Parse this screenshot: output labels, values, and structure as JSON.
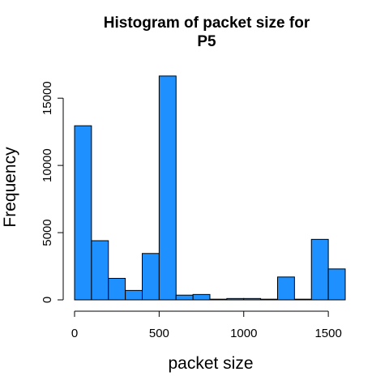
{
  "chart_data": {
    "type": "bar",
    "title_lines": [
      "Histogram of packet size for",
      "P5"
    ],
    "xlabel": "packet size",
    "ylabel": "Frequency",
    "bin_edges": [
      0,
      100,
      200,
      300,
      400,
      500,
      600,
      700,
      800,
      900,
      1000,
      1100,
      1200,
      1300,
      1400,
      1500,
      1600
    ],
    "values": [
      12950,
      4400,
      1600,
      700,
      3450,
      16650,
      350,
      400,
      50,
      100,
      100,
      50,
      1700,
      50,
      4500,
      2300
    ],
    "xlim": [
      0,
      1600
    ],
    "ylim": [
      0,
      17000
    ],
    "x_ticks": [
      0,
      500,
      1000,
      1500
    ],
    "x_tick_labels": [
      "0",
      "500",
      "1000",
      "1500"
    ],
    "y_ticks": [
      0,
      5000,
      10000,
      15000
    ],
    "y_tick_labels": [
      "0",
      "5000",
      "10000",
      "15000"
    ],
    "bar_color": "#1E90FF",
    "bar_border_color": "#000000",
    "grid": false
  }
}
